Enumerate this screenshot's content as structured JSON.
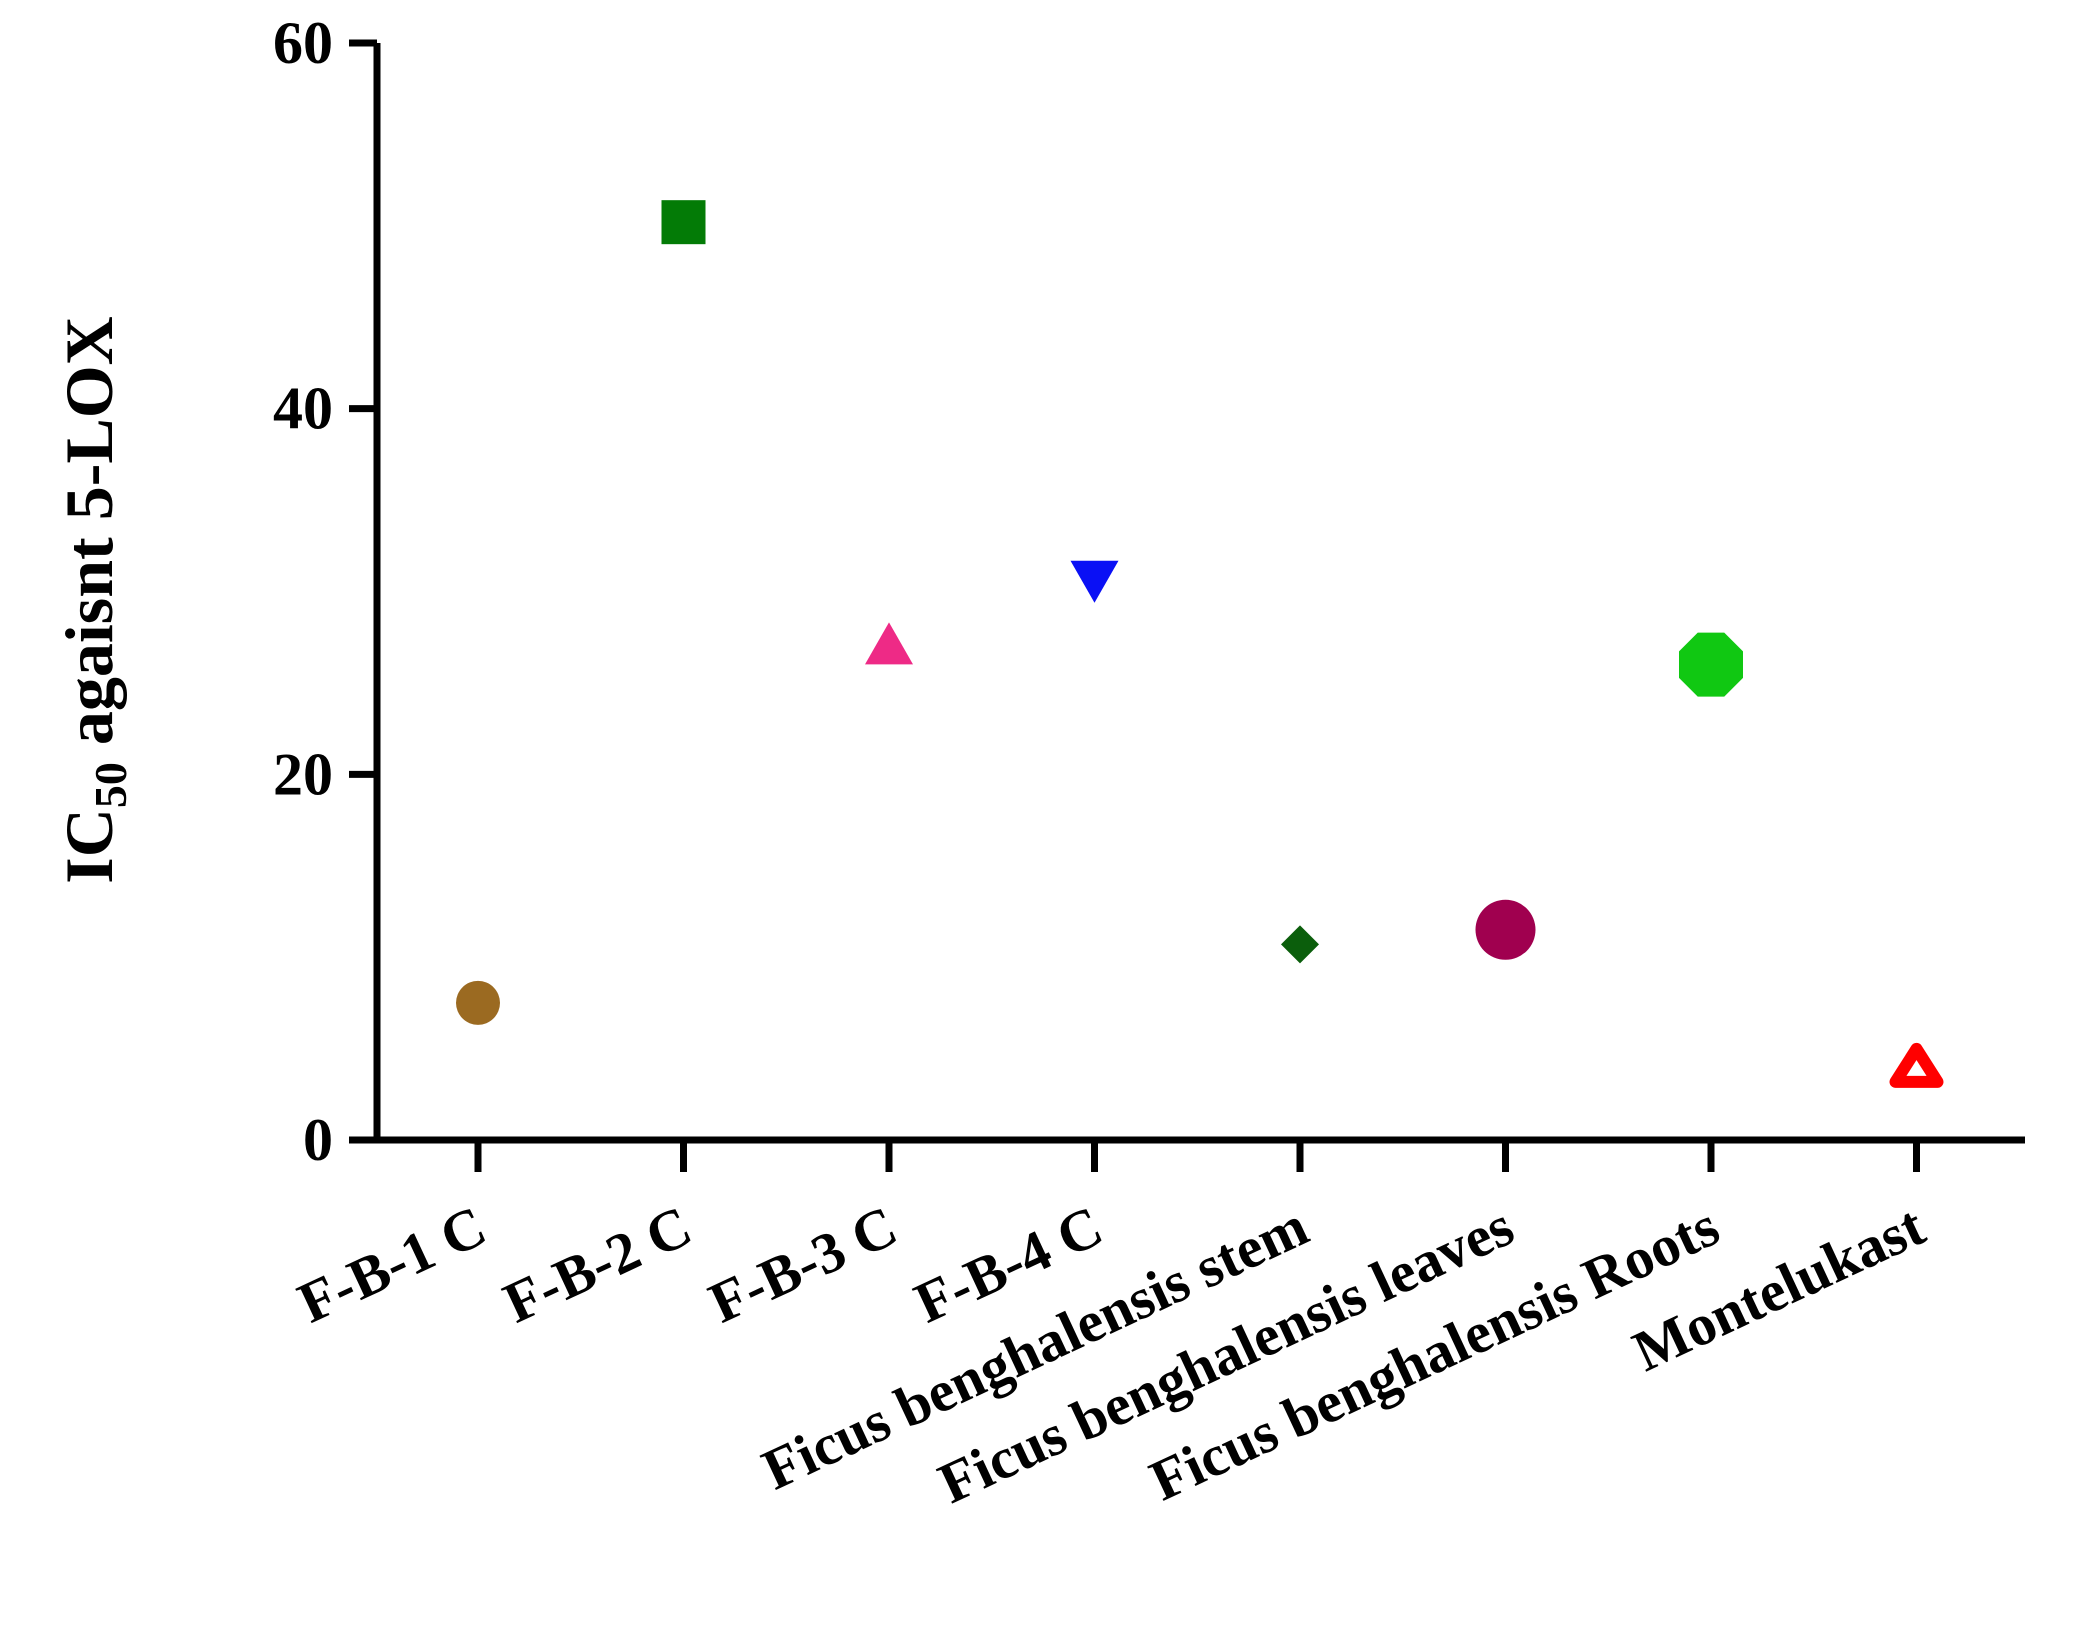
{
  "chart_data": {
    "type": "scatter",
    "ylabel": {
      "prefix": "IC",
      "subscript": "50",
      "suffix": " agaisnt 5-LOX"
    },
    "ylim": [
      0,
      60
    ],
    "yticks": [
      {
        "value": 0,
        "label": "0"
      },
      {
        "value": 20,
        "label": "20"
      },
      {
        "value": 40,
        "label": "40"
      },
      {
        "value": 60,
        "label": "60"
      }
    ],
    "grid": false,
    "legend": "none",
    "categories": [
      "F-B-1 C",
      "F-B-2 C",
      "F-B-3 C",
      "F-B-4 C",
      "Ficus benghalensis stem",
      "Ficus benghalensis leaves",
      "Ficus benghalensis Roots",
      "Montelukast"
    ],
    "values": [
      7.5,
      50.2,
      27.0,
      30.7,
      10.7,
      11.5,
      26.0,
      4.0
    ],
    "markers": [
      {
        "shape": "circle",
        "color": "#9B6A21"
      },
      {
        "shape": "square",
        "color": "#037B06"
      },
      {
        "shape": "triangle-up",
        "color": "#EE2A86"
      },
      {
        "shape": "triangle-down",
        "color": "#0A10F5"
      },
      {
        "shape": "diamond",
        "color": "#0B5E0C"
      },
      {
        "shape": "circle-large",
        "color": "#A0004F"
      },
      {
        "shape": "octagon",
        "color": "#10C812"
      },
      {
        "shape": "triangle-up-open",
        "color": "#FF0000"
      }
    ]
  }
}
